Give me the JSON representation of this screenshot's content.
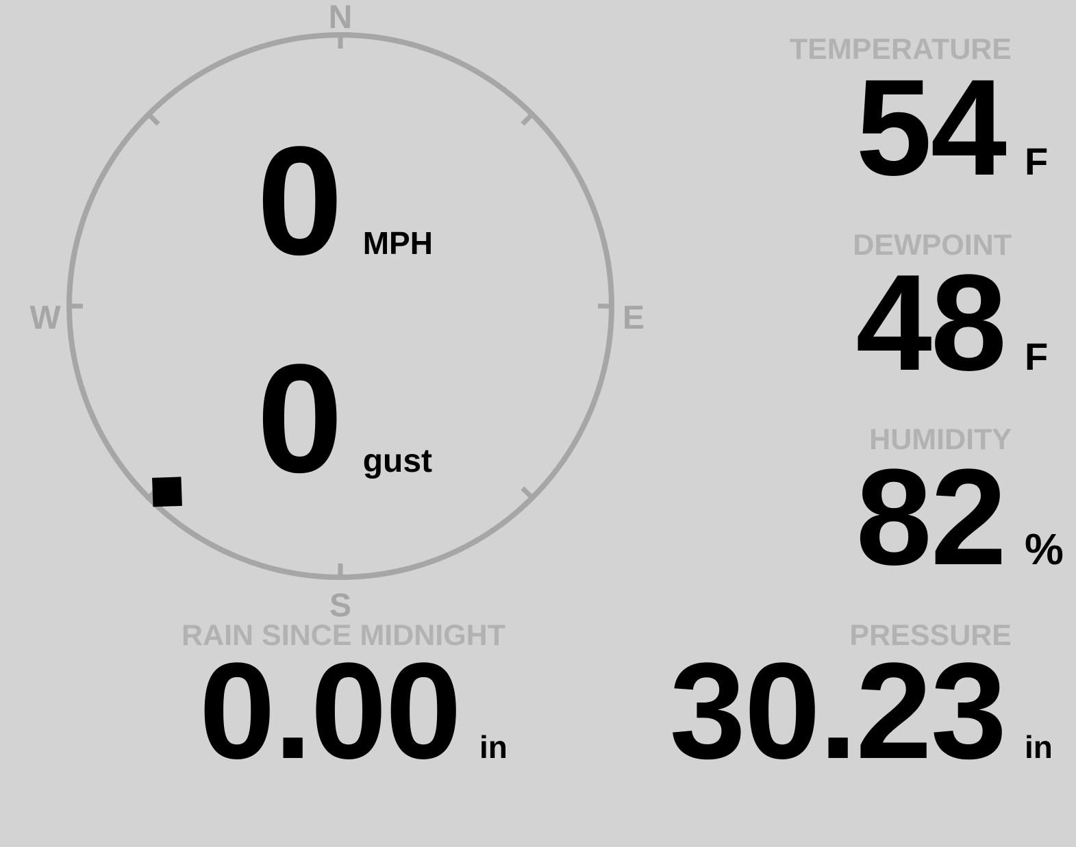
{
  "colors": {
    "background": "#d3d3d3",
    "gauge_gray": "#a6a6a6",
    "label_gray": "#b2b2b2",
    "value_black": "#000000"
  },
  "wind": {
    "compass": {
      "north": "N",
      "east": "E",
      "south": "S",
      "west": "W"
    },
    "speed": {
      "value": "0",
      "unit": "MPH"
    },
    "gust": {
      "value": "0",
      "unit": "gust"
    },
    "direction_degrees": 223
  },
  "metrics": {
    "temperature": {
      "label": "TEMPERATURE",
      "value": "54",
      "unit": "F"
    },
    "dewpoint": {
      "label": "DEWPOINT",
      "value": "48",
      "unit": "F"
    },
    "humidity": {
      "label": "HUMIDITY",
      "value": "82",
      "unit": "%"
    },
    "rain": {
      "label": "RAIN SINCE MIDNIGHT",
      "value": "0.00",
      "unit": "in"
    },
    "pressure": {
      "label": "PRESSURE",
      "value": "30.23",
      "unit": "in"
    }
  }
}
